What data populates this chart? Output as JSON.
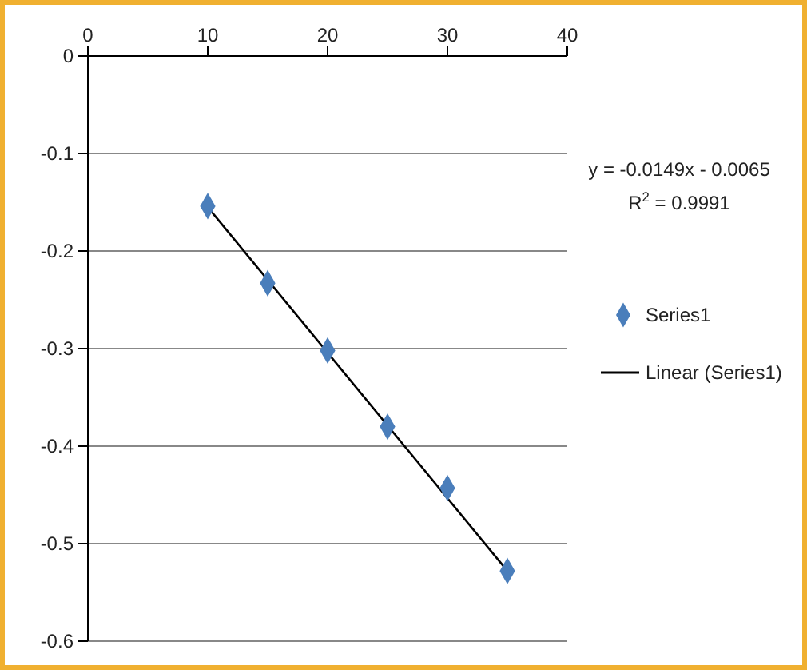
{
  "chart_data": {
    "type": "scatter",
    "x": [
      10,
      15,
      20,
      25,
      30,
      35
    ],
    "series": [
      {
        "name": "Series1",
        "color": "#4a7ebb",
        "marker": "diamond",
        "values": [
          -0.154,
          -0.233,
          -0.302,
          -0.38,
          -0.443,
          -0.528
        ]
      },
      {
        "name": "Linear (Series1)",
        "type": "line",
        "color": "#000000",
        "x": [
          10,
          35
        ],
        "values": [
          -0.155,
          -0.528
        ]
      }
    ],
    "xlim": [
      0,
      40
    ],
    "xticks": [
      0,
      10,
      20,
      30,
      40
    ],
    "ylim": [
      -0.6,
      0
    ],
    "yticks": [
      0,
      -0.1,
      -0.2,
      -0.3,
      -0.4,
      -0.5,
      -0.6
    ],
    "grid": "y",
    "legend": "right",
    "annotations": [
      "y = -0.0149x - 0.0065",
      "R$^{2}$ = 0.9991"
    ]
  }
}
